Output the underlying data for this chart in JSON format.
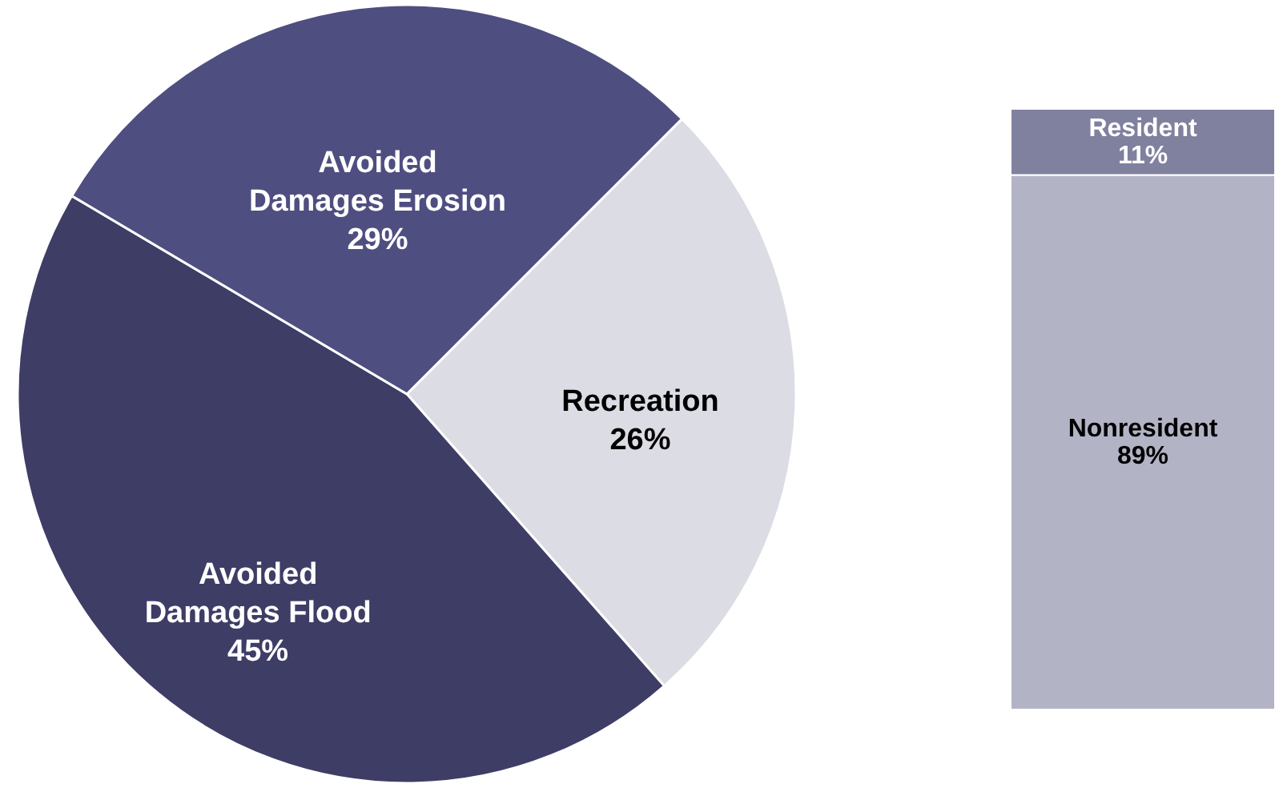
{
  "chart_data": [
    {
      "type": "pie",
      "categories": [
        "Recreation",
        "Avoided Damages Flood",
        "Avoided Damages Erosion"
      ],
      "values": [
        26,
        45,
        29
      ],
      "value_labels": [
        "26%",
        "45%",
        "29%"
      ],
      "colors": [
        "#dcdce4",
        "#3e3d66",
        "#4f4e80"
      ],
      "legend": false
    },
    {
      "type": "bar",
      "stacked": true,
      "categories": [
        null
      ],
      "legend": false,
      "series": [
        {
          "name": "Nonresident",
          "color": "#b3b3c6",
          "values": [
            89
          ],
          "value_labels": [
            "89%"
          ]
        },
        {
          "name": "Resident",
          "color": "#80809f",
          "values": [
            11
          ],
          "value_labels": [
            "11%"
          ]
        }
      ]
    }
  ]
}
